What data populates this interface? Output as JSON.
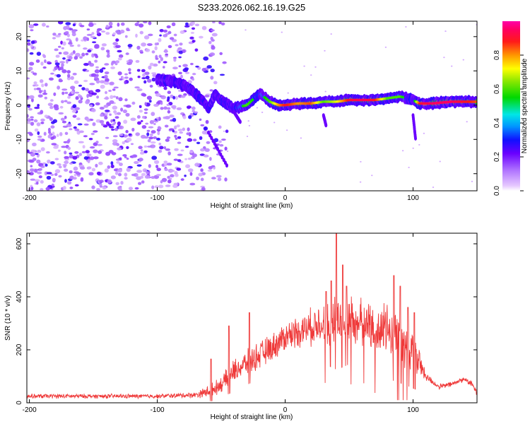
{
  "figure": {
    "title": "S233.2026.062.16.19.G25",
    "colors": {
      "snr_line": "#ef3a3a",
      "frame": "#000000",
      "background": "#ffffff"
    }
  },
  "chart_data": [
    {
      "type": "heatmap",
      "name": "spectrogram",
      "title": "S233.2026.062.16.19.G25",
      "xlabel": "Height of straight line (km)",
      "ylabel": "Frequency (Hz)",
      "xlim": [
        -202,
        150
      ],
      "ylim": [
        -25,
        24.5
      ],
      "xticks": [
        -200,
        -100,
        0,
        100
      ],
      "xtick_labels": [
        "-200",
        "-100",
        "0",
        "100"
      ],
      "yticks": [
        -20,
        -10,
        0,
        10,
        20
      ],
      "ytick_labels": [
        "-20",
        "-10",
        "0",
        "10",
        "20"
      ],
      "colorbar": {
        "label": "Normalized spectral amplitude",
        "range": [
          0,
          1
        ],
        "ticks": [
          0.0,
          0.2,
          0.4,
          0.6,
          0.8
        ],
        "tick_labels": [
          "0.0",
          "0.2",
          "0.4",
          "0.6",
          "0.8"
        ]
      },
      "noise_region": {
        "x_range": [
          -202,
          -55
        ],
        "freq_range": [
          -25,
          24.5
        ],
        "amplitude": 0.15
      },
      "ridge": [
        {
          "x": -100,
          "freq": 7.5,
          "amp": 0.25
        },
        {
          "x": -90,
          "freq": 7,
          "amp": 0.3
        },
        {
          "x": -80,
          "freq": 6,
          "amp": 0.35
        },
        {
          "x": -72,
          "freq": 4,
          "amp": 0.35
        },
        {
          "x": -64,
          "freq": 1,
          "amp": 0.4
        },
        {
          "x": -60,
          "freq": -1,
          "amp": 0.35
        },
        {
          "x": -55,
          "freq": 3,
          "amp": 0.3
        },
        {
          "x": -48,
          "freq": 1,
          "amp": 0.4
        },
        {
          "x": -40,
          "freq": -1,
          "amp": 0.45
        },
        {
          "x": -30,
          "freq": 0,
          "amp": 0.6
        },
        {
          "x": -20,
          "freq": 3.5,
          "amp": 0.5
        },
        {
          "x": -12,
          "freq": 1,
          "amp": 0.6
        },
        {
          "x": -5,
          "freq": 0,
          "amp": 0.8
        },
        {
          "x": 0,
          "freq": 0,
          "amp": 0.9
        },
        {
          "x": 10,
          "freq": 0.5,
          "amp": 0.8
        },
        {
          "x": 20,
          "freq": 0.5,
          "amp": 0.85
        },
        {
          "x": 30,
          "freq": 1,
          "amp": 0.6
        },
        {
          "x": 40,
          "freq": 1,
          "amp": 0.7
        },
        {
          "x": 50,
          "freq": 1.5,
          "amp": 0.9
        },
        {
          "x": 60,
          "freq": 1.5,
          "amp": 0.95
        },
        {
          "x": 70,
          "freq": 1.5,
          "amp": 0.9
        },
        {
          "x": 80,
          "freq": 2,
          "amp": 0.6
        },
        {
          "x": 90,
          "freq": 2.5,
          "amp": 0.6
        },
        {
          "x": 100,
          "freq": 1.5,
          "amp": 0.4
        },
        {
          "x": 105,
          "freq": 0.5,
          "amp": 0.9
        },
        {
          "x": 115,
          "freq": 0.5,
          "amp": 0.95
        },
        {
          "x": 130,
          "freq": 1,
          "amp": 0.95
        },
        {
          "x": 140,
          "freq": 1,
          "amp": 0.9
        },
        {
          "x": 150,
          "freq": 1,
          "amp": 0.85
        }
      ]
    },
    {
      "type": "line",
      "name": "snr",
      "xlabel": "Height of straight line (km)",
      "ylabel": "SNR (10 * v/v)",
      "xlim": [
        -202,
        150
      ],
      "ylim": [
        0,
        640
      ],
      "xticks": [
        -200,
        -100,
        0,
        100
      ],
      "xtick_labels": [
        "-200",
        "-100",
        "0",
        "100"
      ],
      "yticks": [
        0,
        200,
        400,
        600
      ],
      "ytick_labels": [
        "0",
        "200",
        "400",
        "600"
      ],
      "color": "#ef3a3a",
      "envelope": {
        "x": [
          -202,
          -150,
          -100,
          -70,
          -62,
          -55,
          -50,
          -40,
          -30,
          -20,
          -10,
          0,
          10,
          20,
          30,
          40,
          50,
          60,
          70,
          80,
          90,
          100,
          105,
          110,
          120,
          130,
          140,
          146,
          150
        ],
        "level": [
          25,
          25,
          25,
          30,
          40,
          55,
          70,
          120,
          150,
          180,
          210,
          250,
          270,
          285,
          300,
          305,
          310,
          300,
          280,
          270,
          240,
          190,
          150,
          100,
          60,
          70,
          90,
          70,
          40
        ],
        "noise": [
          10,
          10,
          10,
          12,
          25,
          30,
          35,
          50,
          55,
          60,
          60,
          65,
          70,
          80,
          100,
          120,
          110,
          100,
          110,
          120,
          110,
          90,
          70,
          20,
          12,
          12,
          12,
          12,
          15
        ]
      },
      "spikes": [
        {
          "x": -58,
          "y": 165
        },
        {
          "x": -44,
          "y": 290
        },
        {
          "x": -28,
          "y": 340
        },
        {
          "x": 32,
          "y": 420
        },
        {
          "x": 36,
          "y": 460
        },
        {
          "x": 40,
          "y": 640
        },
        {
          "x": 45,
          "y": 520
        },
        {
          "x": 48,
          "y": 440
        },
        {
          "x": 85,
          "y": 480
        },
        {
          "x": 90,
          "y": 440
        },
        {
          "x": 96,
          "y": 360
        },
        {
          "x": 101,
          "y": 340
        }
      ]
    }
  ]
}
